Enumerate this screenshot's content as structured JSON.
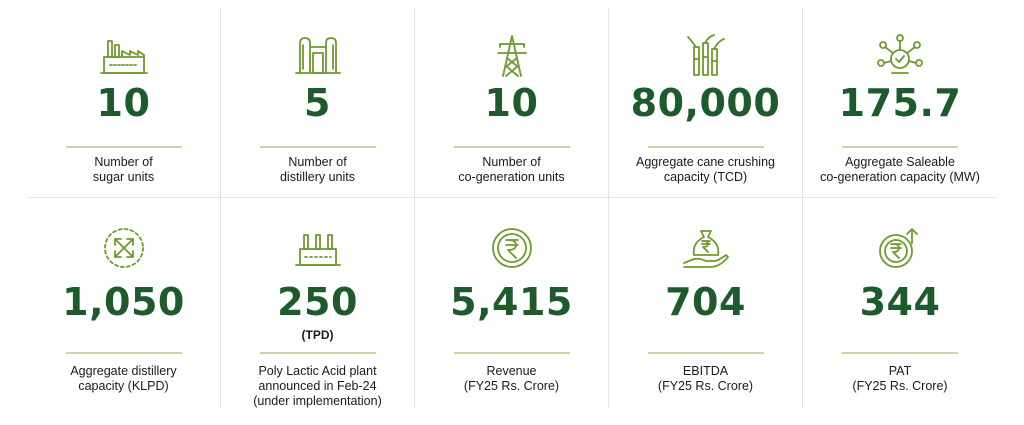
{
  "stats": [
    {
      "icon": "factory-icon",
      "value": "10",
      "unit": "",
      "label": "Number of\nsugar units"
    },
    {
      "icon": "distillery-icon",
      "value": "5",
      "unit": "",
      "label": "Number of\ndistillery units"
    },
    {
      "icon": "transmission-tower-icon",
      "value": "10",
      "unit": "",
      "label": "Number of\nco-generation units"
    },
    {
      "icon": "sugarcane-icon",
      "value": "80,000",
      "unit": "",
      "label": "Aggregate cane crushing\ncapacity (TCD)"
    },
    {
      "icon": "network-gear-icon",
      "value": "175.7",
      "unit": "",
      "label": "Aggregate Saleable\nco-generation capacity (MW)"
    },
    {
      "icon": "expand-arrows-icon",
      "value": "1,050",
      "unit": "",
      "label": "Aggregate distillery\ncapacity (KLPD)"
    },
    {
      "icon": "plant-icon",
      "value": "250",
      "unit": "(TPD)",
      "label": "Poly Lactic Acid plant\nannounced in Feb-24\n(under implementation)"
    },
    {
      "icon": "rupee-coin-icon",
      "value": "5,415",
      "unit": "",
      "label": "Revenue\n(FY25 Rs. Crore)"
    },
    {
      "icon": "money-bag-hand-icon",
      "value": "704",
      "unit": "",
      "label": "EBITDA\n(FY25 Rs. Crore)"
    },
    {
      "icon": "rupee-growth-icon",
      "value": "344",
      "unit": "",
      "label": "PAT\n(FY25 Rs. Crore)"
    }
  ],
  "colors": {
    "accent": "#6f9a2d",
    "value": "#1e5b2c",
    "rule": "#c6d6a4"
  }
}
